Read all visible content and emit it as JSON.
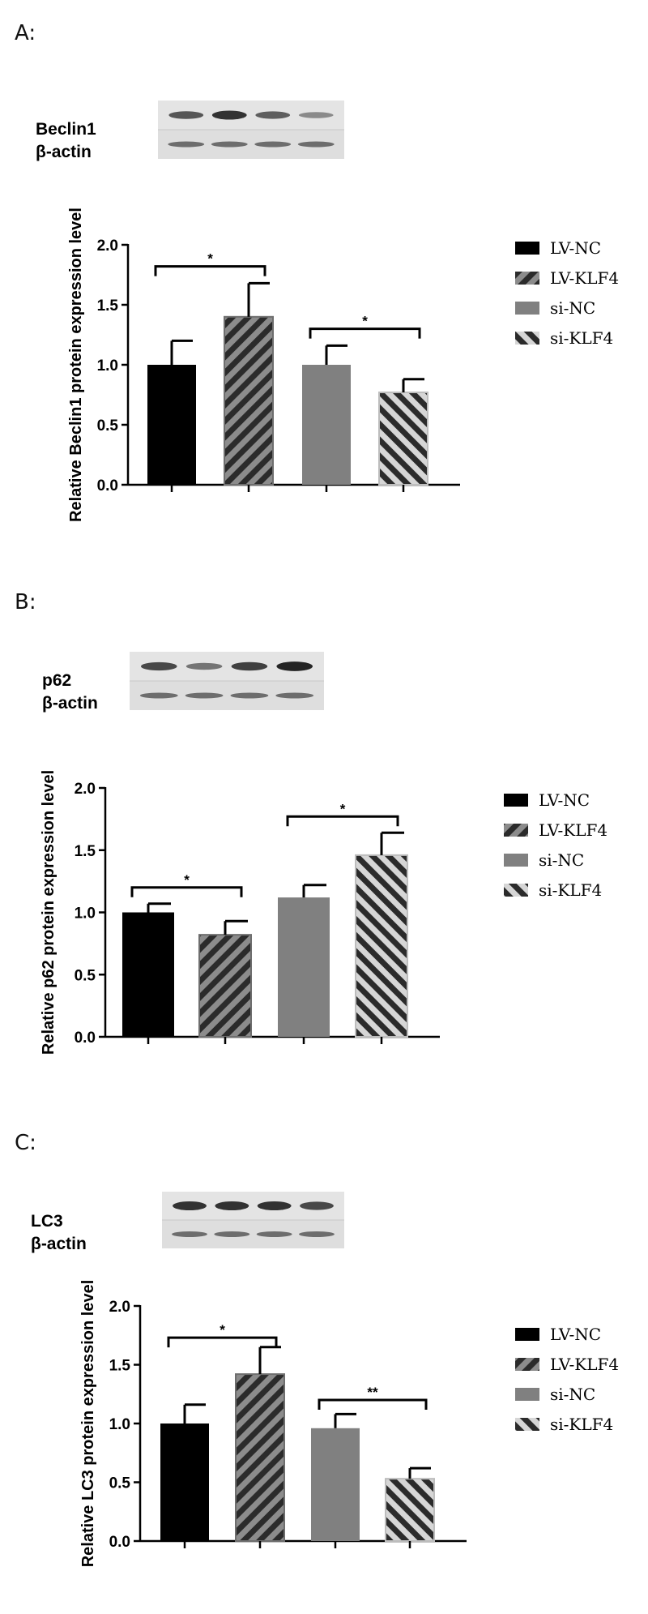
{
  "colors": {
    "bar_black": "#000000",
    "bar_hatch_dark": "#2b2b2b",
    "bar_hatch_bg": "#8c8c8c",
    "bar_gray": "#808080",
    "bar_hatch_light_bg": "#d6d6d6"
  },
  "panels": [
    {
      "label": "A:",
      "blot": {
        "protein": "Beclin1",
        "control": "β-actin",
        "lanes": 4,
        "band_intensity": [
          0.6,
          0.85,
          0.55,
          0.25
        ]
      },
      "chart_data": {
        "type": "bar",
        "categories": [
          "LV-NC",
          "LV-KLF4",
          "si-NC",
          "si-KLF4"
        ],
        "values": [
          1.0,
          1.4,
          1.0,
          0.77
        ],
        "errors": [
          0.2,
          0.28,
          0.16,
          0.11
        ],
        "ylabel": "Relative Beclin1 protein expression level",
        "ylim": [
          0,
          2.0
        ],
        "yticks": [
          "0.0",
          "0.5",
          "1.0",
          "1.5",
          "2.0"
        ],
        "legend": [
          "LV-NC",
          "LV-KLF4",
          "si-NC",
          "si-KLF4"
        ],
        "legend_position": "right",
        "significance": [
          {
            "from": 0,
            "to": 1,
            "label": "*",
            "level": 1.82
          },
          {
            "from": 2,
            "to": 3,
            "label": "*",
            "level": 1.3
          }
        ]
      }
    },
    {
      "label": "B:",
      "blot": {
        "protein": "p62",
        "control": "β-actin",
        "lanes": 4,
        "band_intensity": [
          0.7,
          0.4,
          0.75,
          0.95
        ]
      },
      "chart_data": {
        "type": "bar",
        "categories": [
          "LV-NC",
          "LV-KLF4",
          "si-NC",
          "si-KLF4"
        ],
        "values": [
          1.0,
          0.82,
          1.12,
          1.46
        ],
        "errors": [
          0.07,
          0.11,
          0.1,
          0.18
        ],
        "ylabel": "Relative p62 protein expression level",
        "ylim": [
          0,
          2.0
        ],
        "yticks": [
          "0.0",
          "0.5",
          "1.0",
          "1.5",
          "2.0"
        ],
        "legend": [
          "LV-NC",
          "LV-KLF4",
          "si-NC",
          "si-KLF4"
        ],
        "legend_position": "right",
        "significance": [
          {
            "from": 0,
            "to": 1,
            "label": "*",
            "level": 1.2
          },
          {
            "from": 2,
            "to": 3,
            "label": "*",
            "level": 1.77
          }
        ]
      }
    },
    {
      "label": "C:",
      "blot": {
        "protein": "LC3",
        "control": "β-actin",
        "lanes": 4,
        "band_intensity": [
          0.85,
          0.85,
          0.85,
          0.7
        ]
      },
      "chart_data": {
        "type": "bar",
        "categories": [
          "LV-NC",
          "LV-KLF4",
          "si-NC",
          "si-KLF4"
        ],
        "values": [
          1.0,
          1.42,
          0.96,
          0.53
        ],
        "errors": [
          0.16,
          0.23,
          0.12,
          0.09
        ],
        "ylabel": "Relative LC3 protein expression level",
        "ylim": [
          0,
          2.0
        ],
        "yticks": [
          "0.0",
          "0.5",
          "1.0",
          "1.5",
          "2.0"
        ],
        "legend": [
          "LV-NC",
          "LV-KLF4",
          "si-NC",
          "si-KLF4"
        ],
        "legend_position": "right",
        "significance": [
          {
            "from": 0,
            "to": 1,
            "label": "*",
            "level": 1.73
          },
          {
            "from": 2,
            "to": 3,
            "label": "**",
            "level": 1.2
          }
        ]
      }
    }
  ]
}
